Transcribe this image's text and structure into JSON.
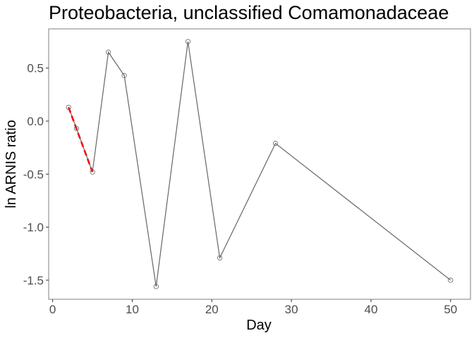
{
  "chart_data": {
    "type": "line",
    "title": "Proteobacteria, unclassified Comamonadaceae",
    "xlabel": "Day",
    "ylabel": "ln ARNIS ratio",
    "xlim": [
      -0.5,
      52.5
    ],
    "ylim": [
      -1.68,
      0.87
    ],
    "x_ticks": [
      0,
      10,
      20,
      30,
      40,
      50
    ],
    "y_ticks": [
      -1.5,
      -1.0,
      -0.5,
      0.0,
      0.5
    ],
    "x_tick_labels": [
      "0",
      "10",
      "20",
      "30",
      "40",
      "50"
    ],
    "y_tick_labels": [
      "-1.5",
      "-1.0",
      "-0.5",
      "0.0",
      "0.5"
    ],
    "grid": false,
    "series": [
      {
        "x": [
          2,
          3,
          5,
          7,
          9,
          13,
          17,
          21,
          28,
          50
        ],
        "y": [
          0.13,
          -0.07,
          -0.48,
          0.65,
          0.43,
          -1.56,
          0.75,
          -1.29,
          -0.21,
          -1.5
        ],
        "color": "#666666",
        "marker": "open-circle"
      }
    ],
    "fit_line": {
      "x": [
        2,
        5
      ],
      "y": [
        0.13,
        -0.48
      ],
      "color": "#ff0000",
      "style": "dashed"
    }
  }
}
